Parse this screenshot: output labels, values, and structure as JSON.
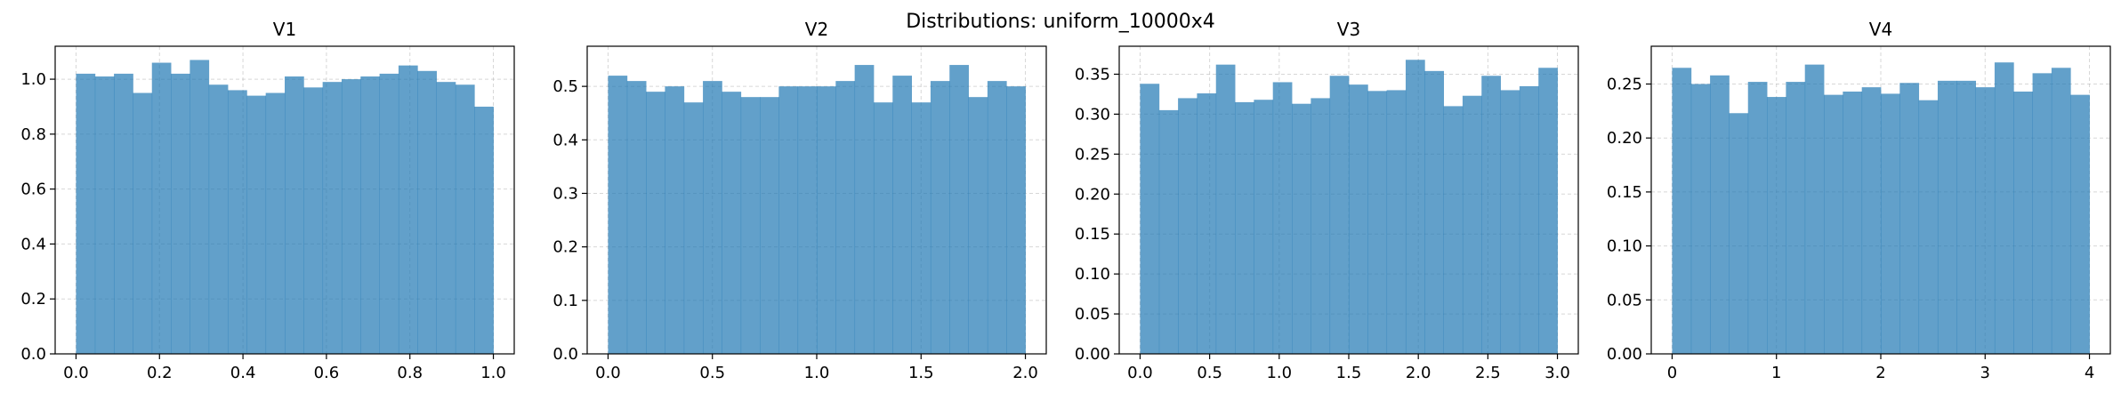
{
  "figure": {
    "title": "Distributions: uniform_10000x4"
  },
  "chart_data": [
    {
      "type": "bar",
      "title": "V1",
      "xlabel": "",
      "ylabel": "",
      "xlim": [
        -0.05,
        1.05
      ],
      "ylim": [
        0,
        1.12
      ],
      "xticks": [
        0.0,
        0.2,
        0.4,
        0.6,
        0.8,
        1.0
      ],
      "xtick_labels": [
        "0.0",
        "0.2",
        "0.4",
        "0.6",
        "0.8",
        "1.0"
      ],
      "yticks": [
        0.0,
        0.2,
        0.4,
        0.6,
        0.8,
        1.0
      ],
      "ytick_labels": [
        "0.0",
        "0.2",
        "0.4",
        "0.6",
        "0.8",
        "1.0"
      ],
      "bin_edges": [
        0.0,
        1.0
      ],
      "values": [
        1.02,
        1.01,
        1.02,
        0.95,
        1.06,
        1.02,
        1.07,
        0.98,
        0.96,
        0.94,
        0.95,
        1.01,
        0.97,
        0.99,
        1.0,
        1.01,
        1.02,
        1.05,
        1.03,
        0.99,
        0.98,
        0.9
      ],
      "color": "#1f77b4",
      "alpha": 0.7,
      "grid": true
    },
    {
      "type": "bar",
      "title": "V2",
      "xlabel": "",
      "ylabel": "",
      "xlim": [
        -0.1,
        2.1
      ],
      "ylim": [
        0,
        0.575
      ],
      "xticks": [
        0.0,
        0.5,
        1.0,
        1.5,
        2.0
      ],
      "xtick_labels": [
        "0.0",
        "0.5",
        "1.0",
        "1.5",
        "2.0"
      ],
      "yticks": [
        0.0,
        0.1,
        0.2,
        0.3,
        0.4,
        0.5
      ],
      "ytick_labels": [
        "0.0",
        "0.1",
        "0.2",
        "0.3",
        "0.4",
        "0.5"
      ],
      "bin_edges": [
        0.0,
        2.0
      ],
      "values": [
        0.52,
        0.51,
        0.49,
        0.5,
        0.47,
        0.51,
        0.49,
        0.48,
        0.48,
        0.5,
        0.5,
        0.5,
        0.51,
        0.54,
        0.47,
        0.52,
        0.47,
        0.51,
        0.54,
        0.48,
        0.51,
        0.5
      ],
      "color": "#1f77b4",
      "alpha": 0.7,
      "grid": true
    },
    {
      "type": "bar",
      "title": "V3",
      "xlabel": "",
      "ylabel": "",
      "xlim": [
        -0.15,
        3.15
      ],
      "ylim": [
        0,
        0.385
      ],
      "xticks": [
        0.0,
        0.5,
        1.0,
        1.5,
        2.0,
        2.5,
        3.0
      ],
      "xtick_labels": [
        "0.0",
        "0.5",
        "1.0",
        "1.5",
        "2.0",
        "2.5",
        "3.0"
      ],
      "yticks": [
        0.0,
        0.05,
        0.1,
        0.15,
        0.2,
        0.25,
        0.3,
        0.35
      ],
      "ytick_labels": [
        "0.00",
        "0.05",
        "0.10",
        "0.15",
        "0.20",
        "0.25",
        "0.30",
        "0.35"
      ],
      "bin_edges": [
        0.0,
        3.0
      ],
      "values": [
        0.338,
        0.305,
        0.32,
        0.326,
        0.362,
        0.315,
        0.318,
        0.34,
        0.313,
        0.32,
        0.348,
        0.337,
        0.329,
        0.33,
        0.368,
        0.354,
        0.31,
        0.323,
        0.348,
        0.33,
        0.335,
        0.358
      ],
      "color": "#1f77b4",
      "alpha": 0.7,
      "grid": true
    },
    {
      "type": "bar",
      "title": "V4",
      "xlabel": "",
      "ylabel": "",
      "xlim": [
        -0.2,
        4.2
      ],
      "ylim": [
        0,
        0.285
      ],
      "xticks": [
        0,
        1,
        2,
        3,
        4
      ],
      "xtick_labels": [
        "0",
        "1",
        "2",
        "3",
        "4"
      ],
      "yticks": [
        0.0,
        0.05,
        0.1,
        0.15,
        0.2,
        0.25
      ],
      "ytick_labels": [
        "0.00",
        "0.05",
        "0.10",
        "0.15",
        "0.20",
        "0.25"
      ],
      "bin_edges": [
        0.0,
        4.0
      ],
      "values": [
        0.265,
        0.25,
        0.258,
        0.223,
        0.252,
        0.238,
        0.252,
        0.268,
        0.24,
        0.243,
        0.247,
        0.241,
        0.251,
        0.235,
        0.253,
        0.253,
        0.247,
        0.27,
        0.243,
        0.26,
        0.265,
        0.24
      ],
      "color": "#1f77b4",
      "alpha": 0.7,
      "grid": true
    }
  ]
}
